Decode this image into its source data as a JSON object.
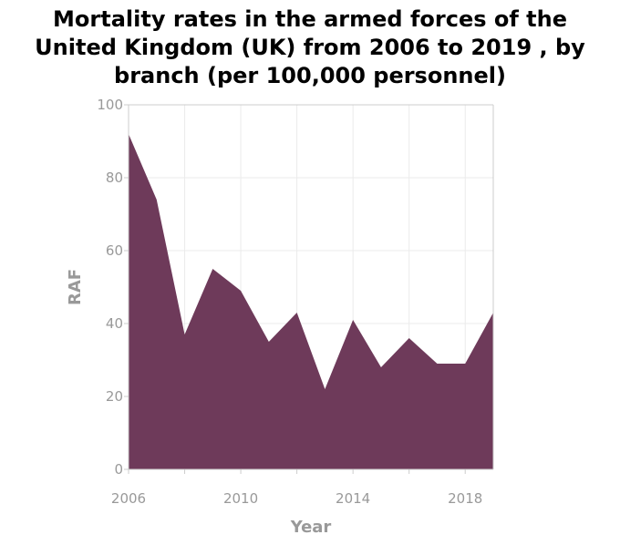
{
  "title_lines": [
    "Mortality rates in the armed forces of the",
    "United Kingdom (UK) from 2006 to 2019 , by",
    "branch (per 100,000 personnel)"
  ],
  "chart_data": {
    "type": "area",
    "title": "Mortality rates in the armed forces of the United Kingdom (UK) from 2006 to 2019 , by branch (per 100,000 personnel)",
    "xlabel": "Year",
    "ylabel": "RAF",
    "x": [
      2006,
      2007,
      2008,
      2009,
      2010,
      2011,
      2012,
      2013,
      2014,
      2015,
      2016,
      2017,
      2018,
      2019
    ],
    "series": [
      {
        "name": "RAF",
        "values": [
          92,
          74,
          37,
          55,
          49,
          35,
          43,
          22,
          41,
          28,
          36,
          29,
          29,
          43
        ]
      }
    ],
    "xlim": [
      2006,
      2019
    ],
    "ylim": [
      0,
      100
    ],
    "x_ticks": [
      2006,
      2010,
      2014,
      2018
    ],
    "y_ticks": [
      0,
      20,
      40,
      60,
      80,
      100
    ],
    "grid": true,
    "fill_color": "#6e3a5a",
    "grid_color": "#ebebeb",
    "axis_color": "#cccccc"
  }
}
